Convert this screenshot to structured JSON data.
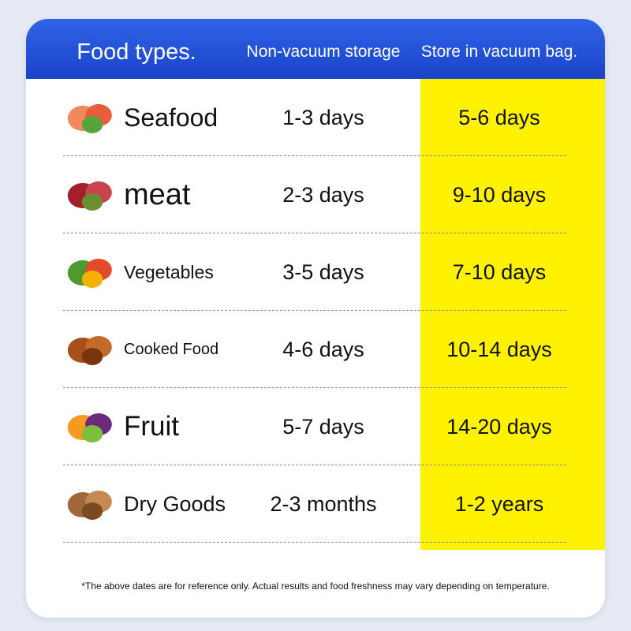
{
  "header": [
    "Food types.",
    "Non-vacuum storage",
    "Store in vacuum bag."
  ],
  "rows": [
    [
      "Seafood",
      "1-3 days",
      "5-6 days"
    ],
    [
      "meat",
      "2-3 days",
      "9-10 days"
    ],
    [
      "Vegetables",
      "3-5 days",
      "7-10 days"
    ],
    [
      "Cooked Food",
      "4-6 days",
      "10-14 days"
    ],
    [
      "Fruit",
      "5-7 days",
      "14-20 days"
    ],
    [
      "Dry Goods",
      "2-3 months",
      "1-2 years"
    ]
  ],
  "footnote": "*The above dates are for reference only. Actual results and food freshness may vary depending on temperature."
}
